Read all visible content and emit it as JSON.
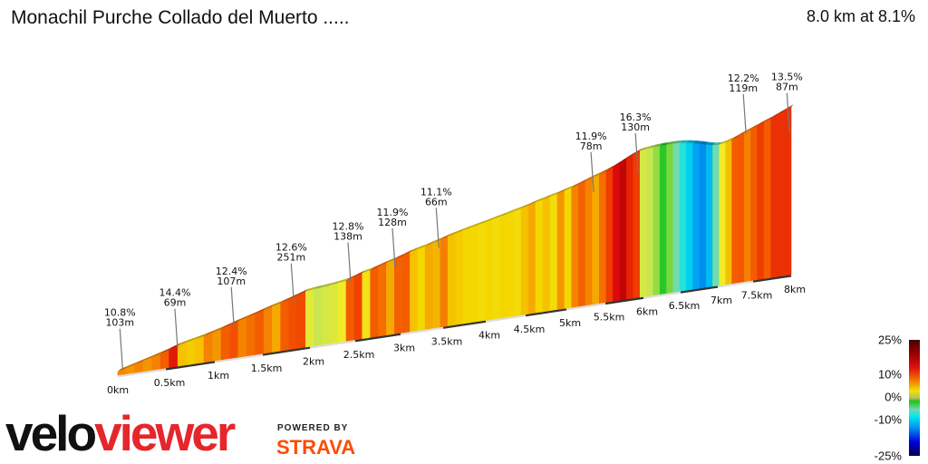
{
  "header": {
    "title": "Monachil Purche Collado del Muerto .....",
    "summary": "8.0 km at 8.1%"
  },
  "chart_data": {
    "type": "area",
    "title": "Monachil Purche Collado del Muerto .....",
    "x_unit": "km",
    "x_ticks": [
      "0km",
      "0.5km",
      "1km",
      "1.5km",
      "2km",
      "2.5km",
      "3km",
      "3.5km",
      "4km",
      "4.5km",
      "5km",
      "5.5km",
      "6km",
      "6.5km",
      "7km",
      "7.5km",
      "8km"
    ],
    "segment_length_km": 0.1,
    "gradients_pct": [
      10.8,
      10.5,
      11,
      10.5,
      11,
      12,
      14.4,
      9,
      8.5,
      9,
      11,
      10.5,
      12,
      12.4,
      11,
      11.5,
      12,
      11,
      10,
      12,
      12.5,
      12.6,
      5,
      3,
      4,
      4.5,
      6,
      12,
      12.8,
      7,
      12,
      11.5,
      10,
      11.9,
      12,
      9,
      8,
      10,
      9.5,
      11.1,
      9,
      8.5,
      8,
      8,
      7.5,
      8,
      7.5,
      8,
      8,
      7.5,
      9,
      10,
      8,
      9,
      7.5,
      10.5,
      8,
      11,
      11.9,
      11,
      10,
      11.5,
      13,
      15,
      16.3,
      14,
      13,
      4,
      3,
      2,
      0,
      1.5,
      -2,
      -4,
      -6,
      -8,
      -9,
      -7,
      -2,
      6,
      9,
      12,
      12.2,
      11,
      12,
      13,
      12,
      13.5,
      13.5,
      13.5
    ],
    "annotations": [
      {
        "km": 0.05,
        "pct": "10.8%",
        "len": "103m"
      },
      {
        "km": 0.62,
        "pct": "14.4%",
        "len": "69m"
      },
      {
        "km": 1.2,
        "pct": "12.4%",
        "len": "107m"
      },
      {
        "km": 1.83,
        "pct": "12.6%",
        "len": "251m"
      },
      {
        "km": 2.45,
        "pct": "12.8%",
        "len": "138m"
      },
      {
        "km": 2.94,
        "pct": "11.9%",
        "len": "128m"
      },
      {
        "km": 3.45,
        "pct": "11.1%",
        "len": "66m"
      },
      {
        "km": 5.35,
        "pct": "11.9%",
        "len": "78m"
      },
      {
        "km": 5.93,
        "pct": "16.3%",
        "len": "130m"
      },
      {
        "km": 7.4,
        "pct": "12.2%",
        "len": "119m"
      },
      {
        "km": 7.98,
        "pct": "13.5%",
        "len": "87m"
      }
    ],
    "legend": {
      "labels": [
        "25%",
        "10%",
        "0%",
        "-10%",
        "-25%"
      ],
      "values": [
        25,
        10,
        0,
        -10,
        -25
      ]
    }
  },
  "branding": {
    "logo_a": "velo",
    "logo_b": "viewer",
    "powered_by": "POWERED BY",
    "strava": "STRAVA",
    "strava_color": "#fc4c02",
    "viewer_color": "#e5262b"
  }
}
